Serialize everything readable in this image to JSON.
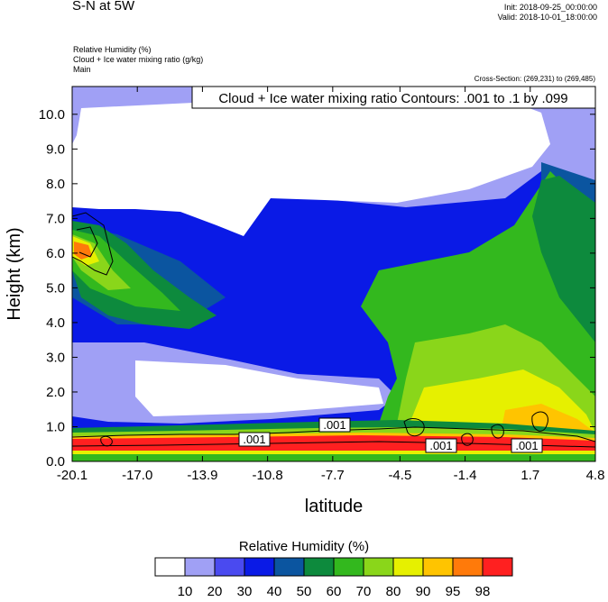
{
  "header": {
    "title": "S-N at 5W",
    "init": "Init: 2018-09-25_00:00:00",
    "valid": "Valid: 2018-10-01_18:00:00",
    "field1": "Relative Humidity   (%)",
    "field2": "Cloud + Ice water mixing ratio   (g/kg)",
    "field3": "Main",
    "cross_section": "Cross-Section: (269,231) to (269,485)"
  },
  "chart_data": {
    "type": "heatmap",
    "title": "S-N at 5W",
    "contour_title": "Cloud + Ice water mixing ratio Contours: .001 to .1 by .099",
    "contour_labels": [
      ".001",
      ".001",
      ".001",
      ".001"
    ],
    "xlabel": "latitude",
    "ylabel": "Height (km)",
    "x_ticks": [
      "-20.1",
      "-17.0",
      "-13.9",
      "-10.8",
      "-7.7",
      "-4.5",
      "-1.4",
      "1.7",
      "4.8"
    ],
    "x_tick_values": [
      -20.1,
      -17.0,
      -13.9,
      -10.8,
      -7.7,
      -4.5,
      -1.4,
      1.7,
      4.8
    ],
    "y_ticks": [
      "0.0",
      "1.0",
      "2.0",
      "3.0",
      "4.0",
      "5.0",
      "6.0",
      "7.0",
      "8.0",
      "9.0",
      "10.0"
    ],
    "y_tick_values": [
      0,
      1,
      2,
      3,
      4,
      5,
      6,
      7,
      8,
      9,
      10
    ],
    "xlim": [
      -20.1,
      4.8
    ],
    "ylim": [
      0,
      10.8
    ],
    "colorbar": {
      "title": "Relative Humidity  (%)",
      "levels": [
        "10",
        "20",
        "30",
        "40",
        "50",
        "60",
        "70",
        "80",
        "90",
        "95",
        "98"
      ],
      "colors": [
        "#ffffff",
        "#a0a0f5",
        "#4a4af0",
        "#0a1ae6",
        "#0b55a0",
        "#0d8a3d",
        "#33b81e",
        "#8ad61a",
        "#e6f000",
        "#ffc400",
        "#ff7a0a",
        "#ff2020"
      ]
    },
    "rh_samples": [
      {
        "lat": -12.0,
        "height": 9.5,
        "rh": 5
      },
      {
        "lat": -15.0,
        "height": 3.3,
        "rh": 25
      },
      {
        "lat": -17.5,
        "height": 4.8,
        "rh": 65
      },
      {
        "lat": -19.8,
        "height": 6.5,
        "rh": 92
      },
      {
        "lat": 0.0,
        "height": 4.0,
        "rh": 65
      },
      {
        "lat": -1.0,
        "height": 1.5,
        "rh": 82
      },
      {
        "lat": -9.0,
        "height": 0.7,
        "rh": 97
      },
      {
        "lat": -12.0,
        "height": 0.3,
        "rh": 70
      }
    ]
  }
}
